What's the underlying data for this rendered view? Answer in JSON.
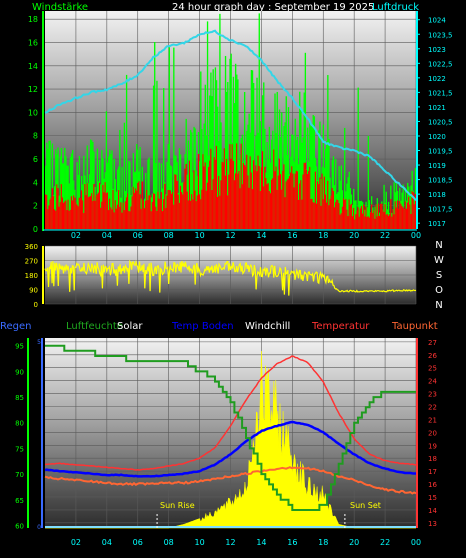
{
  "header": {
    "left_label": "Windstärke",
    "title": "24 hour graph day : September 19 2025",
    "right_label": "Luftdruck"
  },
  "colors": {
    "wind_gust": "#00ff00",
    "wind_avg": "#ff0000",
    "pressure": "#33d6e8",
    "wind_dir": "#ffff00",
    "humidity": "#1f9c1f",
    "solar": "#ffff00",
    "temp_ground": "#0000ff",
    "windchill": "#ffffff",
    "temperature": "#ff3333",
    "dewpoint": "#ff6633",
    "left_axis": "#00ff00",
    "right_axis": "#00ffff",
    "time_axis": "#00ffff",
    "dir_axis": "#ffff00",
    "bottom_left_axis": "#00ff00",
    "bottom_right_axis": "#ff3333"
  },
  "time_ticks": [
    "02",
    "04",
    "06",
    "08",
    "10",
    "12",
    "14",
    "16",
    "18",
    "20",
    "22",
    "00"
  ],
  "chart_data": [
    {
      "type": "bar",
      "title": "24 hour graph day : September 19 2025",
      "ylabel": "Windstärke",
      "ylabel_right": "Luftdruck",
      "ylim": [
        0,
        18.7
      ],
      "ylim_right": [
        1016.8,
        1024.3
      ],
      "y_ticks": [
        "0",
        "2",
        "4",
        "6",
        "8",
        "10",
        "12",
        "14",
        "16",
        "18"
      ],
      "y_ticks_right": [
        "1017",
        "1017,5",
        "1018",
        "1018,5",
        "1019",
        "1019,5",
        "1020",
        "1020,5",
        "1021",
        "1021,5",
        "1022",
        "1022,5",
        "1023",
        "1023,5",
        "1024"
      ],
      "x_hours": [
        0,
        1,
        2,
        3,
        4,
        5,
        6,
        7,
        8,
        9,
        10,
        11,
        12,
        13,
        14,
        15,
        16,
        17,
        18,
        19,
        20,
        21,
        22,
        23,
        24
      ],
      "series": [
        {
          "name": "gust",
          "values": [
            5.5,
            6,
            5,
            6,
            5.5,
            5,
            5.5,
            5,
            5.5,
            7,
            10,
            11,
            12,
            11,
            11,
            10,
            10,
            9,
            7,
            5,
            3,
            2,
            3,
            3,
            4
          ]
        },
        {
          "name": "average",
          "values": [
            3,
            3,
            2.5,
            3,
            3,
            2.5,
            3,
            3,
            3,
            4,
            5,
            5.5,
            5.5,
            5.5,
            5,
            5,
            5,
            4,
            3.5,
            2.5,
            1.5,
            1.5,
            2,
            2,
            2.5
          ]
        },
        {
          "name": "Luftdruck",
          "values": [
            1020.8,
            1021.1,
            1021.3,
            1021.5,
            1021.6,
            1021.8,
            1022.1,
            1022.7,
            1023.1,
            1023.2,
            1023.5,
            1023.6,
            1023.3,
            1023.1,
            1022.6,
            1021.9,
            1021.3,
            1020.6,
            1019.8,
            1019.6,
            1019.5,
            1019.3,
            1018.8,
            1018.3,
            1017.8
          ]
        }
      ]
    },
    {
      "type": "line",
      "ylim": [
        0,
        360
      ],
      "y_ticks": [
        "0",
        "90",
        "180",
        "270",
        "360"
      ],
      "compass": [
        "N",
        "W",
        "S",
        "O",
        "N"
      ],
      "x_hours": [
        0,
        1,
        2,
        3,
        4,
        5,
        6,
        7,
        8,
        9,
        10,
        11,
        12,
        13,
        14,
        15,
        16,
        17,
        18,
        19,
        20,
        21,
        22,
        23,
        24
      ],
      "series": [
        {
          "name": "wind direction",
          "values": [
            245,
            230,
            215,
            225,
            210,
            220,
            230,
            215,
            225,
            235,
            210,
            220,
            225,
            215,
            210,
            200,
            185,
            175,
            165,
            80,
            80,
            80,
            80,
            85,
            85
          ]
        }
      ]
    },
    {
      "type": "line",
      "legend": [
        "Regen",
        "Luftfeuchte",
        "Solar",
        "Temp Boden",
        "Windchill",
        "Temperatur",
        "Taupunkt"
      ],
      "ylim": [
        59.5,
        96.5
      ],
      "ylim_right": [
        12.6,
        27.3
      ],
      "y_ticks": [
        "60",
        "65",
        "70",
        "75",
        "80",
        "85",
        "90",
        "95"
      ],
      "y_ticks_right": [
        "13",
        "14",
        "15",
        "16",
        "17",
        "18",
        "19",
        "20",
        "21",
        "22",
        "23",
        "24",
        "25",
        "26",
        "27"
      ],
      "rain_ticks": [
        "0",
        "5"
      ],
      "annotations": [
        "Sun Rise",
        "Sun Set"
      ],
      "x_hours": [
        0,
        1,
        2,
        3,
        4,
        5,
        6,
        7,
        8,
        9,
        10,
        11,
        12,
        13,
        14,
        15,
        16,
        17,
        18,
        19,
        20,
        21,
        22,
        23,
        24
      ],
      "series": [
        {
          "name": "Luftfeuchte",
          "values": [
            95,
            94.5,
            94,
            93.5,
            93,
            92.5,
            92.3,
            92,
            92,
            91.5,
            90,
            88,
            84,
            77,
            70,
            66,
            63,
            62.5,
            64,
            72,
            80,
            84,
            86,
            86,
            86
          ]
        },
        {
          "name": "Temperatur",
          "values": [
            17.5,
            17.6,
            17.5,
            17.4,
            17.3,
            17.2,
            17.1,
            17.2,
            17.4,
            17.6,
            18,
            18.8,
            20.5,
            22.5,
            24.2,
            25.3,
            25.9,
            25.4,
            23.9,
            21.5,
            19.5,
            18.3,
            17.8,
            17.6,
            17.5
          ]
        },
        {
          "name": "Temp Boden",
          "values": [
            17.1,
            17.0,
            16.9,
            16.8,
            16.7,
            16.7,
            16.6,
            16.6,
            16.7,
            16.8,
            17.0,
            17.5,
            18.3,
            19.3,
            20.1,
            20.5,
            20.8,
            20.6,
            20.0,
            19.1,
            18.3,
            17.6,
            17.2,
            16.9,
            16.8
          ]
        },
        {
          "name": "Taupunkt",
          "values": [
            16.5,
            16.4,
            16.3,
            16.2,
            16.1,
            16.0,
            16.0,
            16.0,
            16.1,
            16.1,
            16.2,
            16.4,
            16.6,
            16.8,
            17.0,
            17.2,
            17.3,
            17.2,
            17.0,
            16.6,
            16.3,
            15.9,
            15.6,
            15.4,
            15.3
          ]
        },
        {
          "name": "Solar",
          "values": [
            0,
            0,
            0,
            0,
            0,
            0,
            0,
            0,
            0,
            0.02,
            0.05,
            0.1,
            0.15,
            0.25,
            0.85,
            0.7,
            0.45,
            0.25,
            0.2,
            0.02,
            0,
            0,
            0,
            0,
            0
          ]
        }
      ]
    }
  ]
}
